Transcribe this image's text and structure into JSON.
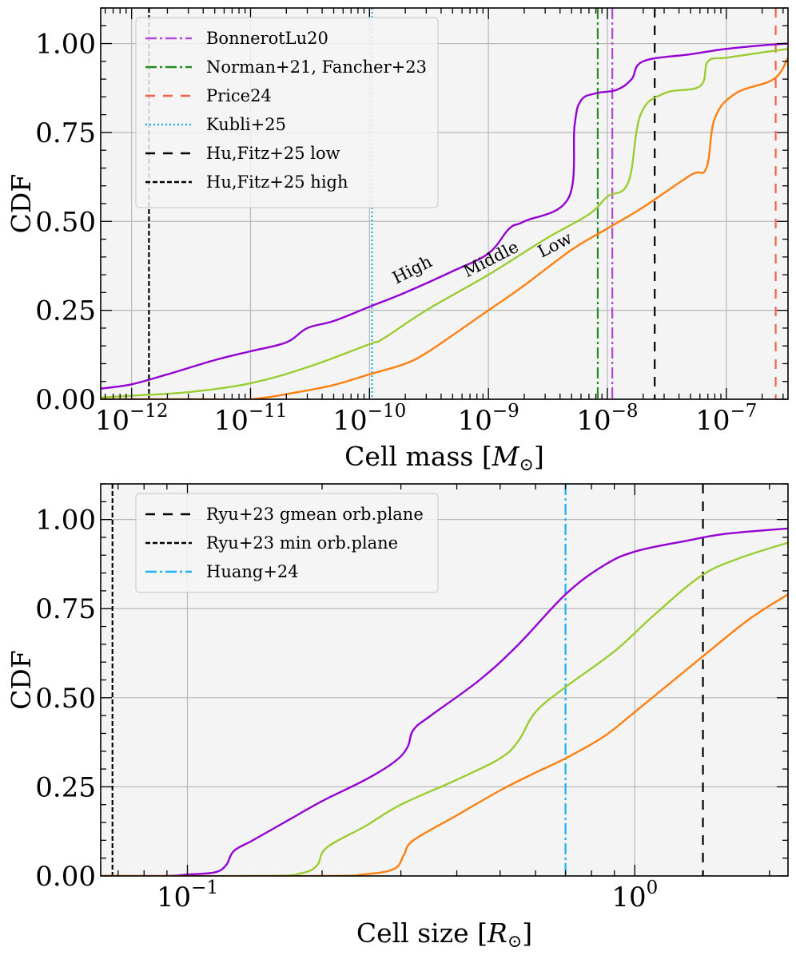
{
  "chart_data": [
    {
      "type": "line",
      "xscale": "log",
      "xlim": [
        5.5e-13,
        3.3e-07
      ],
      "ylim": [
        0,
        1.1
      ],
      "xlabel_text": "Cell mass [",
      "xlabel_unit": "M",
      "xlabel_close": "]",
      "ylabel": "CDF",
      "x_ticks": [
        {
          "value": 1e-12,
          "base": "10",
          "exp": "−12"
        },
        {
          "value": 1e-11,
          "base": "10",
          "exp": "−11"
        },
        {
          "value": 1e-10,
          "base": "10",
          "exp": "−10"
        },
        {
          "value": 1e-09,
          "base": "10",
          "exp": "−9"
        },
        {
          "value": 1e-08,
          "base": "10",
          "exp": "−8"
        },
        {
          "value": 1e-07,
          "base": "10",
          "exp": "−7"
        }
      ],
      "y_ticks": [
        {
          "value": 0,
          "label": "0.00"
        },
        {
          "value": 0.25,
          "label": "0.25"
        },
        {
          "value": 0.5,
          "label": "0.50"
        },
        {
          "value": 0.75,
          "label": "0.75"
        },
        {
          "value": 1,
          "label": "1.00"
        }
      ],
      "grid": true,
      "legend_position": "top-left",
      "series": [
        {
          "key": "high",
          "color": "#9400d3",
          "points": [
            [
              5.5e-13,
              0.03
            ],
            [
              1e-12,
              0.042
            ],
            [
              2e-12,
              0.07
            ],
            [
              5e-12,
              0.11
            ],
            [
              1e-11,
              0.135
            ],
            [
              2e-11,
              0.16
            ],
            [
              3e-11,
              0.2
            ],
            [
              5e-11,
              0.22
            ],
            [
              1e-10,
              0.26
            ],
            [
              2e-10,
              0.3
            ],
            [
              5e-10,
              0.36
            ],
            [
              1e-09,
              0.41
            ],
            [
              1.5e-09,
              0.48
            ],
            [
              2e-09,
              0.5
            ],
            [
              4.7e-09,
              0.565
            ],
            [
              5.3e-09,
              0.77
            ],
            [
              6e-09,
              0.84
            ],
            [
              8e-09,
              0.86
            ],
            [
              1.2e-08,
              0.87
            ],
            [
              1.6e-08,
              0.9
            ],
            [
              2e-08,
              0.95
            ],
            [
              5e-08,
              0.97
            ],
            [
              1e-07,
              0.985
            ],
            [
              2e-07,
              0.995
            ],
            [
              3.3e-07,
              1.0
            ]
          ]
        },
        {
          "key": "middle",
          "color": "#9acd32",
          "points": [
            [
              5.5e-13,
              0.005
            ],
            [
              1e-12,
              0.01
            ],
            [
              3e-12,
              0.02
            ],
            [
              1e-11,
              0.045
            ],
            [
              3e-11,
              0.09
            ],
            [
              1e-10,
              0.155
            ],
            [
              1.3e-10,
              0.17
            ],
            [
              3e-10,
              0.25
            ],
            [
              1e-09,
              0.35
            ],
            [
              3e-09,
              0.45
            ],
            [
              7e-09,
              0.52
            ],
            [
              1e-08,
              0.57
            ],
            [
              1.5e-08,
              0.61
            ],
            [
              1.9e-08,
              0.8
            ],
            [
              3e-08,
              0.86
            ],
            [
              6e-08,
              0.88
            ],
            [
              7e-08,
              0.95
            ],
            [
              1e-07,
              0.96
            ],
            [
              2e-07,
              0.975
            ],
            [
              3.3e-07,
              0.985
            ]
          ]
        },
        {
          "key": "low",
          "color": "#ff7f0e",
          "points": [
            [
              5.5e-13,
              0
            ],
            [
              4e-12,
              0
            ],
            [
              1e-11,
              0
            ],
            [
              2.5e-11,
              0.02
            ],
            [
              5e-11,
              0.04
            ],
            [
              1e-10,
              0.07
            ],
            [
              2e-10,
              0.1
            ],
            [
              3e-10,
              0.13
            ],
            [
              5e-10,
              0.18
            ],
            [
              1e-09,
              0.25
            ],
            [
              2e-09,
              0.32
            ],
            [
              5e-09,
              0.42
            ],
            [
              1e-08,
              0.48
            ],
            [
              2e-08,
              0.54
            ],
            [
              5e-08,
              0.63
            ],
            [
              6.8e-08,
              0.65
            ],
            [
              8e-08,
              0.79
            ],
            [
              1.2e-07,
              0.86
            ],
            [
              2.5e-07,
              0.9
            ],
            [
              3.3e-07,
              0.96
            ]
          ]
        }
      ],
      "vlines": [
        {
          "key": "bonnerot",
          "x": 1.1e-08,
          "color": "#b445d6",
          "dash": "14,4,3,4",
          "width": 2.2
        },
        {
          "key": "norman",
          "x": 8.3e-09,
          "color": "#228b22",
          "dash": "14,4,3,4",
          "width": 2.2
        },
        {
          "key": "price",
          "x": 2.6e-07,
          "color": "#f4614b",
          "dash": "12,10",
          "width": 2.2
        },
        {
          "key": "kubli",
          "x": 1.05e-10,
          "color": "#19b1f0",
          "dash": "2,3",
          "width": 2.2
        },
        {
          "key": "hufitz_low",
          "x": 2.5e-08,
          "color": "#000000",
          "dash": "12,10",
          "width": 2.2
        },
        {
          "key": "hufitz_high",
          "x": 1.4e-12,
          "color": "#000000",
          "dash": "6,3",
          "width": 2.2
        }
      ],
      "legend": [
        {
          "label": "BonnerotLu20",
          "color": "#b445d6",
          "dash": "14,4,3,4"
        },
        {
          "label": "Norman+21, Fancher+23",
          "color": "#228b22",
          "dash": "14,4,3,4"
        },
        {
          "label": "Price24",
          "color": "#f4614b",
          "dash": "12,10"
        },
        {
          "label": "Kubli+25",
          "color": "#19b1f0",
          "dash": "2,3"
        },
        {
          "label": "Hu,Fitz+25 low",
          "color": "#000000",
          "dash": "12,10"
        },
        {
          "label": "Hu,Fitz+25 high",
          "color": "#000000",
          "dash": "6,3"
        }
      ],
      "annotations": [
        {
          "text": "High",
          "x": 2.4e-10,
          "y": 0.35,
          "angle": -27
        },
        {
          "text": "Middle",
          "x": 1.1e-09,
          "y": 0.38,
          "angle": -27
        },
        {
          "text": "Low",
          "x": 3.8e-09,
          "y": 0.42,
          "angle": -27
        }
      ]
    },
    {
      "type": "line",
      "xscale": "log",
      "xlim": [
        0.064,
        2.2
      ],
      "ylim": [
        0,
        1.1
      ],
      "xlabel_text": "Cell size [",
      "xlabel_unit": "R",
      "xlabel_close": "]",
      "ylabel": "CDF",
      "x_ticks": [
        {
          "value": 0.1,
          "base": "10",
          "exp": "−1"
        },
        {
          "value": 1,
          "base": "10",
          "exp": "0"
        }
      ],
      "y_ticks": [
        {
          "value": 0,
          "label": "0.00"
        },
        {
          "value": 0.25,
          "label": "0.25"
        },
        {
          "value": 0.5,
          "label": "0.50"
        },
        {
          "value": 0.75,
          "label": "0.75"
        },
        {
          "value": 1,
          "label": "1.00"
        }
      ],
      "grid": true,
      "legend_position": "top-left",
      "series": [
        {
          "key": "high",
          "color": "#9400d3",
          "points": [
            [
              0.064,
              0
            ],
            [
              0.09,
              0
            ],
            [
              0.1,
              0.004
            ],
            [
              0.115,
              0.01
            ],
            [
              0.122,
              0.03
            ],
            [
              0.127,
              0.07
            ],
            [
              0.14,
              0.1
            ],
            [
              0.17,
              0.16
            ],
            [
              0.2,
              0.21
            ],
            [
              0.25,
              0.27
            ],
            [
              0.29,
              0.32
            ],
            [
              0.31,
              0.36
            ],
            [
              0.32,
              0.41
            ],
            [
              0.35,
              0.45
            ],
            [
              0.45,
              0.55
            ],
            [
              0.55,
              0.65
            ],
            [
              0.7,
              0.79
            ],
            [
              0.85,
              0.87
            ],
            [
              1,
              0.91
            ],
            [
              1.3,
              0.94
            ],
            [
              1.6,
              0.96
            ],
            [
              2.2,
              0.975
            ]
          ]
        },
        {
          "key": "middle",
          "color": "#9acd32",
          "points": [
            [
              0.064,
              0
            ],
            [
              0.15,
              0
            ],
            [
              0.18,
              0.008
            ],
            [
              0.195,
              0.03
            ],
            [
              0.205,
              0.08
            ],
            [
              0.25,
              0.14
            ],
            [
              0.3,
              0.2
            ],
            [
              0.4,
              0.27
            ],
            [
              0.5,
              0.33
            ],
            [
              0.55,
              0.38
            ],
            [
              0.6,
              0.46
            ],
            [
              0.7,
              0.53
            ],
            [
              0.9,
              0.63
            ],
            [
              1.1,
              0.73
            ],
            [
              1.4,
              0.84
            ],
            [
              1.7,
              0.89
            ],
            [
              2.2,
              0.935
            ]
          ]
        },
        {
          "key": "low",
          "color": "#ff7f0e",
          "points": [
            [
              0.064,
              0
            ],
            [
              0.2,
              0
            ],
            [
              0.25,
              0.005
            ],
            [
              0.29,
              0.02
            ],
            [
              0.305,
              0.06
            ],
            [
              0.32,
              0.1
            ],
            [
              0.4,
              0.17
            ],
            [
              0.5,
              0.24
            ],
            [
              0.6,
              0.29
            ],
            [
              0.7,
              0.33
            ],
            [
              0.85,
              0.39
            ],
            [
              1,
              0.46
            ],
            [
              1.4,
              0.61
            ],
            [
              1.8,
              0.72
            ],
            [
              2.2,
              0.79
            ]
          ]
        }
      ],
      "vlines": [
        {
          "key": "ryu_gmean",
          "x": 1.42,
          "color": "#000000",
          "dash": "12,10",
          "width": 2.2
        },
        {
          "key": "ryu_min",
          "x": 0.068,
          "color": "#000000",
          "dash": "6,3",
          "width": 2.2
        },
        {
          "key": "huang",
          "x": 0.7,
          "color": "#19b1f0",
          "dash": "14,4,3,4",
          "width": 2.2
        }
      ],
      "legend": [
        {
          "label": "Ryu+23 gmean orb.plane",
          "color": "#000000",
          "dash": "12,10"
        },
        {
          "label": "Ryu+23 min orb.plane",
          "color": "#000000",
          "dash": "6,3"
        },
        {
          "label": "Huang+24",
          "color": "#19b1f0",
          "dash": "14,4,3,4"
        }
      ],
      "annotations": []
    }
  ]
}
